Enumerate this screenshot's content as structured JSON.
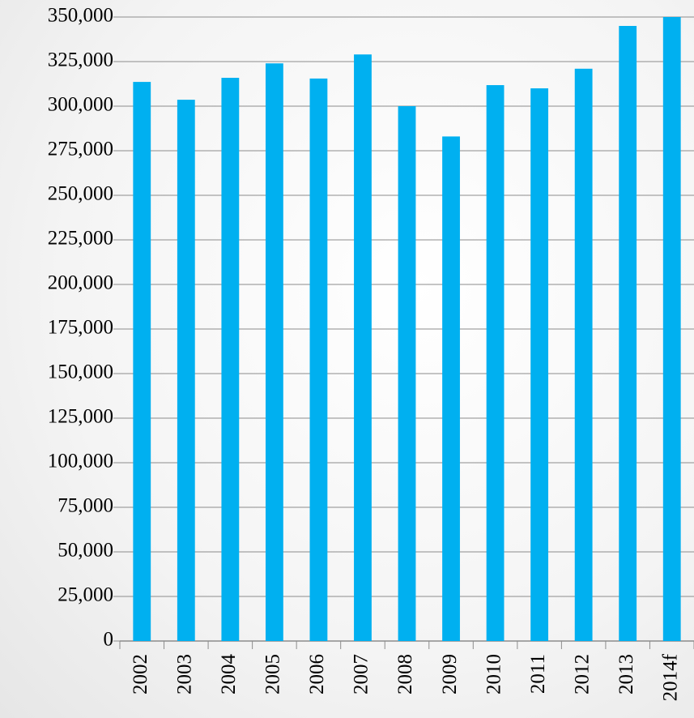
{
  "chart_data": {
    "type": "bar",
    "categories": [
      "2002",
      "2003",
      "2004",
      "2005",
      "2006",
      "2007",
      "2008",
      "2009",
      "2010",
      "2011",
      "2012",
      "2013",
      "2014f"
    ],
    "values": [
      313600,
      303600,
      315900,
      324000,
      315500,
      329000,
      300000,
      283000,
      311800,
      310000,
      321000,
      345000,
      350000
    ],
    "color": "#00b0f0",
    "ylim": [
      0,
      350000
    ],
    "yticks": [
      0,
      {
        "value": 25000,
        "label": "25,000"
      },
      {
        "value": 50000,
        "label": "50,000"
      },
      {
        "value": 75000,
        "label": "75,000"
      },
      {
        "value": 100000,
        "label": "100,000"
      },
      {
        "value": 125000,
        "label": "125,000"
      },
      {
        "value": 150000,
        "label": "150,000"
      },
      {
        "value": 175000,
        "label": "175,000"
      },
      {
        "value": 200000,
        "label": "200,000"
      },
      {
        "value": 225000,
        "label": "225,000"
      },
      {
        "value": 250000,
        "label": "250,000"
      },
      {
        "value": 275000,
        "label": "275,000"
      },
      {
        "value": 300000,
        "label": "300,000"
      },
      {
        "value": 325000,
        "label": "325,000"
      },
      {
        "value": 350000,
        "label": "350,000"
      }
    ],
    "grid": true
  }
}
